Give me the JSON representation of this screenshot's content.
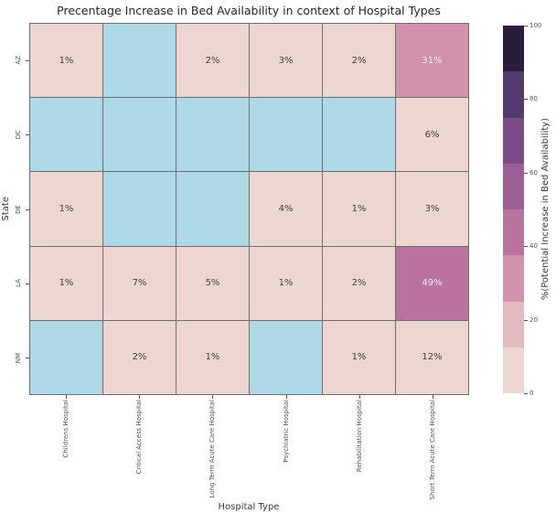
{
  "chart_data": {
    "type": "heatmap",
    "title": "Precentage Increase in Bed Availability in context of Hospital Types",
    "xlabel": "Hospital Type",
    "ylabel": "State",
    "rows": [
      "AZ",
      "DC",
      "DE",
      "LA",
      "NM"
    ],
    "columns": [
      "Childrens Hospital",
      "Critical Access Hospital",
      "Long Term Acute Care Hospital",
      "Psychiatric Hospital",
      "Rehabilitation Hospital",
      "Short Term Acute Care Hospital"
    ],
    "values": [
      [
        1,
        null,
        2,
        3,
        2,
        31
      ],
      [
        null,
        null,
        null,
        null,
        null,
        6
      ],
      [
        1,
        null,
        null,
        4,
        1,
        3
      ],
      [
        1,
        7,
        5,
        1,
        2,
        49
      ],
      [
        null,
        2,
        1,
        null,
        1,
        12
      ]
    ],
    "value_suffix": "%",
    "colorbar": {
      "label": "%(Potential Increase in Bed Availability)",
      "range": [
        0,
        100
      ],
      "ticks": [
        0,
        20,
        40,
        60,
        80,
        100
      ],
      "segment_size": 12.5,
      "segments_bottom_to_top": [
        "#eed6d0",
        "#e3bcc1",
        "#d093ab",
        "#b9739f",
        "#9d6096",
        "#7b4d86",
        "#553c6e",
        "#2a1e3c"
      ]
    },
    "colors": {
      "nan_cell": "#aed9e6",
      "grid_line": "#6e6e6e",
      "annotation_dark": "#3f3f3f",
      "annotation_light": "#f2eef3",
      "light_text_threshold": 25
    }
  }
}
